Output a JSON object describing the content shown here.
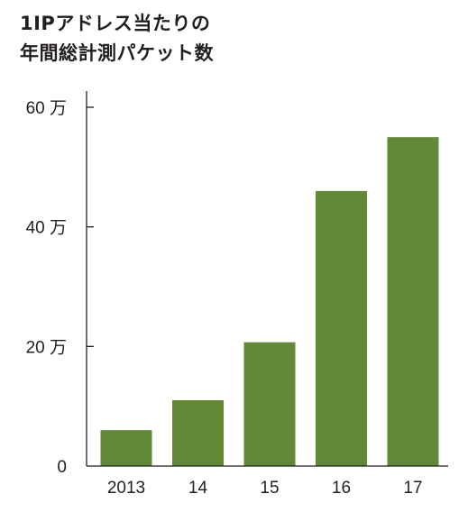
{
  "title_lines": [
    "1IPアドレス当たりの",
    "年間総計測パケット数"
  ],
  "chart_data": {
    "type": "bar",
    "title": "1IPアドレス当たりの年間総計測パケット数",
    "categories": [
      "2013",
      "14",
      "15",
      "16",
      "17"
    ],
    "values": [
      60000,
      110000,
      207000,
      460000,
      550000
    ],
    "y_ticks": [
      {
        "value": 0,
        "label": "0"
      },
      {
        "value": 200000,
        "label": "20 万"
      },
      {
        "value": 400000,
        "label": "40 万"
      },
      {
        "value": 600000,
        "label": "60 万"
      }
    ],
    "ylim": [
      0,
      600000
    ],
    "xlabel": "",
    "ylabel": "",
    "grid": false,
    "colors": {
      "bar": "#628936",
      "axis": "#231f20"
    }
  }
}
